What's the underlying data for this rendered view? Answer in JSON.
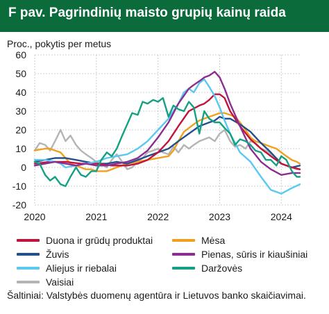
{
  "header": {
    "title": "F pav. Pagrindinių maisto grupių kainų raida"
  },
  "chart_data": {
    "type": "line",
    "ylabel": "Proc., pokytis per metus",
    "ylim": [
      -20,
      60
    ],
    "yticks": [
      -20,
      -10,
      0,
      10,
      20,
      30,
      40,
      50,
      60
    ],
    "xlim": [
      2020.0,
      2024.3
    ],
    "xticks": [
      2020,
      2021,
      2022,
      2023,
      2024
    ],
    "xtick_labels": [
      "2020",
      "2021",
      "2022",
      "2023",
      "2024"
    ],
    "grid": true,
    "legend_position": "bottom",
    "series": [
      {
        "name": "Duona ir grūdų produktai",
        "color": "#c0143c",
        "x": [
          2020.0,
          2020.25,
          2020.5,
          2020.75,
          2021.0,
          2021.25,
          2021.5,
          2021.67,
          2021.83,
          2022.0,
          2022.17,
          2022.33,
          2022.5,
          2022.67,
          2022.75,
          2022.83,
          2022.92,
          2023.0,
          2023.08,
          2023.17,
          2023.33,
          2023.5,
          2023.67,
          2023.83,
          2024.0,
          2024.17,
          2024.3
        ],
        "values": [
          2,
          3,
          3,
          2,
          2,
          1,
          1,
          2,
          4,
          8,
          14,
          22,
          30,
          33,
          34,
          36,
          39,
          39,
          37,
          30,
          22,
          15,
          10,
          6,
          2,
          0,
          -1
        ]
      },
      {
        "name": "Mėsa",
        "color": "#f0a01e",
        "x": [
          2020.0,
          2020.08,
          2020.17,
          2020.25,
          2020.33,
          2020.42,
          2020.5,
          2020.58,
          2020.67,
          2020.75,
          2020.83,
          2020.92,
          2021.0,
          2021.08,
          2021.17,
          2021.25,
          2021.33,
          2021.42,
          2021.5,
          2021.58,
          2021.67,
          2021.75,
          2021.83,
          2021.92,
          2022.0,
          2022.08,
          2022.17,
          2022.25,
          2022.33,
          2022.42,
          2022.5,
          2022.58,
          2022.67,
          2022.75,
          2022.83,
          2022.92,
          2023.0,
          2023.08,
          2023.17,
          2023.25,
          2023.33,
          2023.42,
          2023.5,
          2023.58,
          2023.67,
          2023.75,
          2023.83,
          2023.92,
          2024.0,
          2024.08,
          2024.17,
          2024.25,
          2024.3
        ],
        "values": [
          9,
          9.5,
          10,
          10,
          9,
          8,
          5,
          2,
          1,
          0,
          -1,
          -1,
          -2,
          -2,
          -2,
          -1,
          0,
          1,
          2,
          2.5,
          3,
          3.5,
          4,
          4.5,
          5,
          5.5,
          6,
          9,
          14,
          19,
          21,
          23,
          25,
          26,
          27,
          28,
          29,
          29,
          28,
          27,
          24,
          20,
          16,
          14,
          13,
          12,
          11,
          10,
          8,
          6,
          4,
          3,
          2
        ]
      },
      {
        "name": "Žuvis",
        "color": "#23508c",
        "x": [
          2020.0,
          2020.17,
          2020.33,
          2020.5,
          2020.67,
          2020.83,
          2021.0,
          2021.17,
          2021.33,
          2021.5,
          2021.67,
          2021.83,
          2022.0,
          2022.17,
          2022.33,
          2022.5,
          2022.67,
          2022.83,
          2022.92,
          2023.0,
          2023.08,
          2023.17,
          2023.33,
          2023.5,
          2023.67,
          2023.83,
          2024.0,
          2024.17,
          2024.3
        ],
        "values": [
          3,
          4,
          5,
          5,
          4,
          3,
          2,
          2,
          3,
          2,
          4,
          6,
          8,
          10,
          14,
          18,
          22,
          24,
          25,
          27,
          26,
          26,
          23,
          19,
          13,
          8,
          2,
          0,
          1
        ]
      },
      {
        "name": "Pienas, sūris ir kiaušiniai",
        "color": "#8c2d91",
        "x": [
          2020.0,
          2020.17,
          2020.33,
          2020.5,
          2020.67,
          2020.83,
          2021.0,
          2021.17,
          2021.33,
          2021.5,
          2021.67,
          2021.83,
          2022.0,
          2022.17,
          2022.33,
          2022.5,
          2022.58,
          2022.67,
          2022.75,
          2022.83,
          2022.92,
          2023.0,
          2023.08,
          2023.17,
          2023.33,
          2023.5,
          2023.67,
          2023.83,
          2024.0,
          2024.17,
          2024.3
        ],
        "values": [
          1,
          2,
          3,
          2,
          1,
          2,
          1,
          1,
          2,
          3,
          5,
          9,
          16,
          24,
          34,
          42,
          44,
          46,
          48,
          49,
          51,
          48,
          42,
          34,
          22,
          10,
          3,
          -1,
          -4,
          -3,
          -3
        ]
      },
      {
        "name": "Aliejus ir riebalai",
        "color": "#5ac8f0",
        "x": [
          2020.0,
          2020.17,
          2020.33,
          2020.42,
          2020.5,
          2020.67,
          2020.83,
          2021.0,
          2021.17,
          2021.33,
          2021.5,
          2021.67,
          2021.83,
          2022.0,
          2022.17,
          2022.33,
          2022.42,
          2022.5,
          2022.58,
          2022.67,
          2022.75,
          2022.83,
          2022.92,
          2023.0,
          2023.08,
          2023.17,
          2023.33,
          2023.5,
          2023.67,
          2023.83,
          2024.0,
          2024.17,
          2024.3
        ],
        "values": [
          4,
          4,
          3,
          2,
          0,
          1,
          2,
          3,
          5,
          6,
          7,
          10,
          14,
          20,
          26,
          34,
          40,
          42,
          40,
          45,
          47,
          43,
          38,
          32,
          25,
          18,
          8,
          3,
          -5,
          -12,
          -14,
          -11,
          -9
        ]
      },
      {
        "name": "Daržovės",
        "color": "#14a082",
        "x": [
          2020.0,
          2020.08,
          2020.17,
          2020.25,
          2020.33,
          2020.42,
          2020.5,
          2020.58,
          2020.67,
          2020.75,
          2020.83,
          2020.92,
          2021.0,
          2021.08,
          2021.17,
          2021.25,
          2021.33,
          2021.42,
          2021.5,
          2021.58,
          2021.67,
          2021.75,
          2021.83,
          2021.92,
          2022.0,
          2022.08,
          2022.17,
          2022.25,
          2022.33,
          2022.42,
          2022.5,
          2022.58,
          2022.67,
          2022.75,
          2022.83,
          2022.92,
          2023.0,
          2023.08,
          2023.17,
          2023.25,
          2023.33,
          2023.42,
          2023.5,
          2023.58,
          2023.67,
          2023.75,
          2023.83,
          2023.92,
          2024.0,
          2024.08,
          2024.17,
          2024.25,
          2024.3
        ],
        "values": [
          3,
          2,
          -4,
          -7,
          -5,
          -9,
          -10,
          -5,
          0,
          -4,
          -5,
          -2,
          -2,
          4,
          8,
          6,
          10,
          17,
          23,
          29,
          28,
          35,
          34,
          36,
          35,
          37,
          27,
          33,
          31,
          30,
          35,
          32,
          18,
          30,
          26,
          24,
          24,
          21,
          18,
          12,
          15,
          14,
          12,
          9,
          8,
          4,
          4,
          1,
          6,
          4,
          -2,
          -5,
          -5
        ]
      },
      {
        "name": "Vaisiai",
        "color": "#b4b4b4",
        "x": [
          2020.0,
          2020.08,
          2020.17,
          2020.25,
          2020.33,
          2020.42,
          2020.5,
          2020.58,
          2020.67,
          2020.75,
          2020.83,
          2020.92,
          2021.0,
          2021.08,
          2021.17,
          2021.25,
          2021.33,
          2021.42,
          2021.5,
          2021.58,
          2021.67,
          2021.75,
          2021.83,
          2021.92,
          2022.0,
          2022.08,
          2022.17,
          2022.25,
          2022.33,
          2022.42,
          2022.5,
          2022.58,
          2022.67,
          2022.75,
          2022.83,
          2022.92,
          2023.0,
          2023.08,
          2023.17,
          2023.25,
          2023.33,
          2023.42,
          2023.5,
          2023.58,
          2023.67,
          2023.75,
          2023.83,
          2023.92,
          2024.0,
          2024.08,
          2024.17,
          2024.25,
          2024.3
        ],
        "values": [
          9,
          13,
          12,
          9,
          14,
          20,
          14,
          17,
          12,
          9,
          7,
          5,
          3,
          2,
          0,
          4,
          7,
          3,
          -1,
          0,
          3,
          5,
          8,
          9,
          10,
          8,
          7,
          11,
          8,
          12,
          10,
          12,
          14,
          15,
          16,
          14,
          18,
          20,
          14,
          11,
          12,
          10,
          14,
          13,
          10,
          9,
          7,
          5,
          2,
          1,
          0,
          -1,
          -1
        ]
      }
    ]
  },
  "legend": {
    "items": [
      {
        "label": "Duona ir grūdų produktai",
        "color": "#c0143c"
      },
      {
        "label": "Mėsa",
        "color": "#f0a01e"
      },
      {
        "label": "Žuvis",
        "color": "#23508c"
      },
      {
        "label": "Pienas, sūris ir kiaušiniai",
        "color": "#8c2d91"
      },
      {
        "label": "Aliejus ir riebalai",
        "color": "#5ac8f0"
      },
      {
        "label": "Daržovės",
        "color": "#14a082"
      },
      {
        "label": "Vaisiai",
        "color": "#b4b4b4"
      }
    ]
  },
  "source": {
    "text": "Šaltiniai: Valstybės duomenų agentūra ir Lietuvos banko skaičiavimai."
  }
}
